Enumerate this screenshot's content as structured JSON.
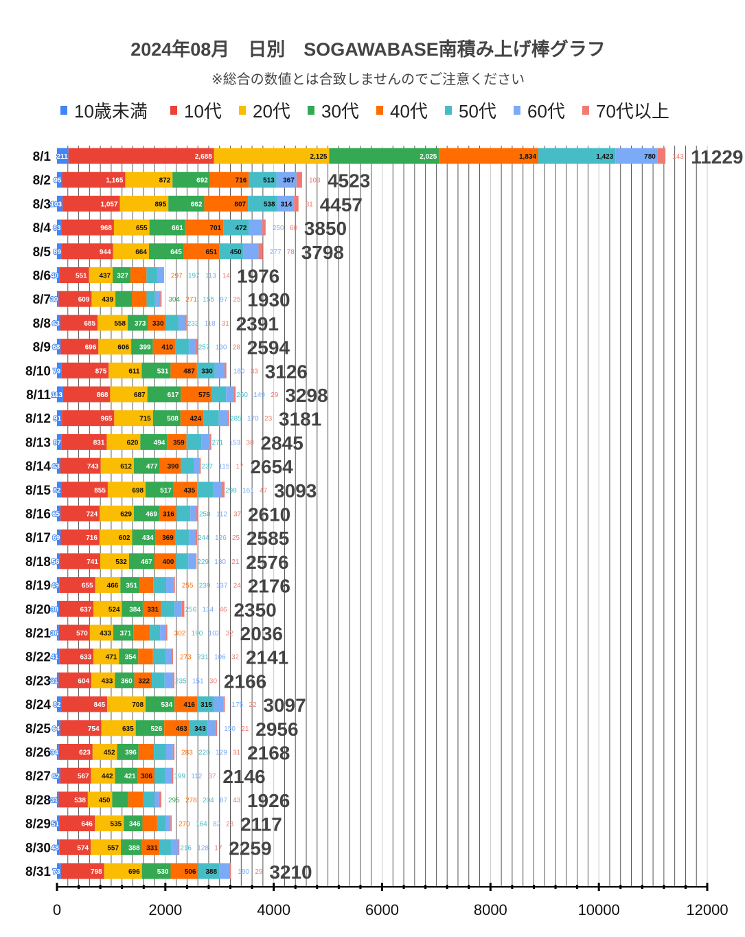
{
  "chart_data": {
    "type": "bar",
    "orientation": "horizontal",
    "stacked": true,
    "title": "2024年08月　日別　SOGAWABASE南積み上げ棒グラフ",
    "subtitle": "※総合の数値とは合致しませんのでご注意ください",
    "legend_position": "top",
    "grid": true,
    "xlim": [
      0,
      12000
    ],
    "x_ticks": [
      "0",
      "2000",
      "4000",
      "6000",
      "8000",
      "10000",
      "12000"
    ],
    "categories": [
      "8/1",
      "8/2",
      "8/3",
      "8/4",
      "8/5",
      "8/6",
      "8/7",
      "8/8",
      "8/9",
      "8/10",
      "8/11",
      "8/12",
      "8/13",
      "8/14",
      "8/15",
      "8/16",
      "8/17",
      "8/18",
      "8/19",
      "8/20",
      "8/21",
      "8/22",
      "8/23",
      "8/24",
      "8/25",
      "8/26",
      "8/27",
      "8/28",
      "8/29",
      "8/30",
      "8/31"
    ],
    "series": [
      {
        "name": "10歳未満",
        "color": "#4285f4",
        "values": [
          211,
          95,
          103,
          83,
          89,
          40,
          30,
          63,
          68,
          79,
          113,
          91,
          87,
          63,
          82,
          65,
          69,
          56,
          49,
          38,
          36,
          41,
          31,
          82,
          64,
          34,
          62,
          31,
          51,
          48,
          73
        ]
      },
      {
        "name": "10代",
        "color": "#ea4335",
        "values": [
          2688,
          1165,
          1057,
          968,
          944,
          551,
          609,
          685,
          696,
          875,
          868,
          965,
          831,
          743,
          855,
          724,
          716,
          741,
          655,
          637,
          570,
          633,
          604,
          845,
          754,
          623,
          567,
          538,
          646,
          574,
          798
        ]
      },
      {
        "name": "20代",
        "color": "#fbbc04",
        "values": [
          2125,
          872,
          895,
          655,
          664,
          437,
          439,
          558,
          606,
          611,
          687,
          715,
          620,
          612,
          698,
          629,
          602,
          532,
          466,
          524,
          433,
          471,
          433,
          708,
          635,
          452,
          442,
          450,
          535,
          557,
          696
        ]
      },
      {
        "name": "30代",
        "color": "#34a853",
        "values": [
          2025,
          692,
          662,
          661,
          645,
          327,
          304,
          373,
          399,
          531,
          617,
          508,
          494,
          477,
          517,
          469,
          434,
          467,
          351,
          384,
          371,
          354,
          360,
          534,
          526,
          396,
          421,
          295,
          346,
          388,
          530
        ]
      },
      {
        "name": "40代",
        "color": "#ff6d01",
        "values": [
          1834,
          716,
          807,
          701,
          651,
          297,
          271,
          330,
          410,
          487,
          575,
          424,
          359,
          390,
          435,
          316,
          369,
          400,
          255,
          331,
          302,
          273,
          322,
          416,
          463,
          283,
          306,
          278,
          270,
          331,
          506
        ]
      },
      {
        "name": "50代",
        "color": "#46bdc6",
        "values": [
          1423,
          513,
          538,
          472,
          450,
          197,
          155,
          233,
          257,
          330,
          260,
          285,
          271,
          237,
          298,
          258,
          244,
          229,
          239,
          256,
          190,
          231,
          235,
          315,
          343,
          220,
          199,
          204,
          164,
          216,
          388
        ]
      },
      {
        "name": "60代",
        "color": "#7baaf7",
        "values": [
          780,
          367,
          314,
          250,
          277,
          113,
          97,
          118,
          130,
          180,
          149,
          170,
          153,
          115,
          161,
          112,
          126,
          130,
          137,
          134,
          102,
          106,
          151,
          175,
          150,
          129,
          112,
          87,
          82,
          128,
          190
        ]
      },
      {
        "name": "70代以上",
        "color": "#f07b72",
        "values": [
          143,
          103,
          81,
          60,
          78,
          14,
          25,
          31,
          28,
          33,
          29,
          23,
          30,
          17,
          47,
          37,
          25,
          21,
          24,
          46,
          32,
          32,
          30,
          22,
          21,
          31,
          37,
          43,
          23,
          17,
          29
        ]
      }
    ],
    "totals": [
      11229,
      4523,
      4457,
      3850,
      3798,
      1976,
      1930,
      2391,
      2594,
      3126,
      3298,
      3181,
      2845,
      2654,
      3093,
      2610,
      2585,
      2576,
      2176,
      2350,
      2036,
      2141,
      2166,
      3097,
      2956,
      2168,
      2146,
      1926,
      2117,
      2259,
      3210
    ]
  }
}
